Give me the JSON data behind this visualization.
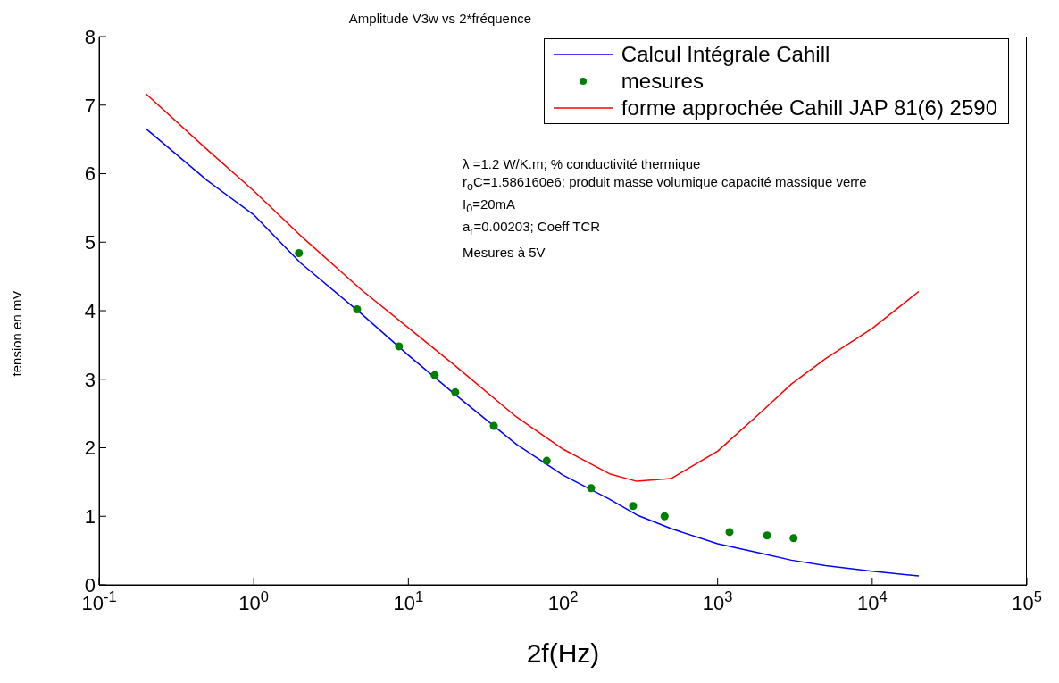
{
  "chart_data": {
    "type": "line",
    "title": "Amplitude V3w vs 2*fréquence",
    "xlabel": "2f(Hz)",
    "ylabel": "tension en mV",
    "log": "x",
    "grid": false,
    "legend": "top right",
    "marker": "none",
    "line_style": "solid",
    "xlim": [
      0.1,
      100000
    ],
    "xticks": [
      {
        "value": 0.1,
        "label": "10$^{-1}$"
      },
      {
        "value": 1,
        "label": "10$^{0}$"
      },
      {
        "value": 10,
        "label": "10$^{1}$"
      },
      {
        "value": 100,
        "label": "10$^{2}$"
      },
      {
        "value": 1000,
        "label": "10$^{3}$"
      },
      {
        "value": 10000,
        "label": "10$^{4}$"
      },
      {
        "value": 100000,
        "label": "10$^{5}$"
      }
    ],
    "ylim": [
      0,
      8
    ],
    "yticks": [
      0,
      1,
      2,
      3,
      4,
      5,
      6,
      7,
      8
    ],
    "series": [
      {
        "name": "Calcul Intégrale Cahill",
        "color": "#0000ff",
        "x": [
          0.2,
          0.5,
          1,
          2,
          5,
          10,
          20,
          50,
          100,
          200,
          300,
          500,
          1000,
          2000,
          3000,
          5000,
          10000,
          20000
        ],
        "values": [
          6.66,
          5.9,
          5.4,
          4.7,
          3.95,
          3.35,
          2.78,
          2.05,
          1.6,
          1.25,
          1.02,
          0.82,
          0.6,
          0.45,
          0.36,
          0.28,
          0.2,
          0.13
        ]
      },
      {
        "name": "mesures",
        "type": "scatter",
        "marker": "circle",
        "color": "#008000",
        "x": [
          1.96,
          4.66,
          8.7,
          14.8,
          20.1,
          35.7,
          78.5,
          152,
          284,
          454,
          1194,
          2090,
          3100
        ],
        "values": [
          4.84,
          4.02,
          3.48,
          3.06,
          2.81,
          2.32,
          1.81,
          1.41,
          1.15,
          1.0,
          0.77,
          0.72,
          0.68
        ]
      },
      {
        "name": "forme approchée Cahill JAP 81(6) 2590",
        "color": "#ff0000",
        "x": [
          0.2,
          0.5,
          1,
          2,
          5,
          10,
          20,
          50,
          100,
          200,
          300,
          500,
          1000,
          2000,
          3000,
          5000,
          10000,
          20000
        ],
        "values": [
          7.17,
          6.35,
          5.75,
          5.1,
          4.3,
          3.75,
          3.2,
          2.45,
          1.98,
          1.62,
          1.51,
          1.55,
          1.95,
          2.56,
          2.93,
          3.3,
          3.74,
          4.28
        ]
      }
    ],
    "annotations": [
      "λ =1.2 W/K.m; % conductivité thermique",
      "r$_{o}$C=1.586160e6; produit masse volumique capacité massique verre",
      "I$_{0}$=20mA",
      "a$_{r}$=0.00203; Coeff TCR",
      "Mesures à 5V"
    ]
  }
}
